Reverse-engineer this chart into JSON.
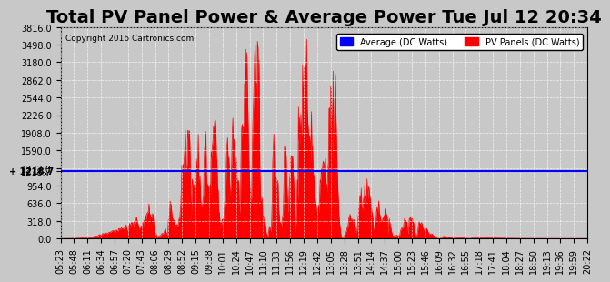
{
  "title": "Total PV Panel Power & Average Power Tue Jul 12 20:34",
  "copyright": "Copyright 2016 Cartronics.com",
  "legend_average": "Average (DC Watts)",
  "legend_pv": "PV Panels (DC Watts)",
  "average_value": 1218.7,
  "y_max": 3816.0,
  "y_ticks": [
    0.0,
    318.0,
    636.0,
    954.0,
    1272.0,
    1590.0,
    1908.0,
    2226.0,
    2544.0,
    2862.0,
    3180.0,
    3498.0,
    3816.0
  ],
  "x_labels": [
    "05:23",
    "05:48",
    "06:11",
    "06:34",
    "06:57",
    "07:20",
    "07:43",
    "08:06",
    "08:29",
    "08:52",
    "09:15",
    "09:38",
    "10:01",
    "10:24",
    "10:47",
    "11:10",
    "11:33",
    "11:56",
    "12:19",
    "12:42",
    "13:05",
    "13:28",
    "13:51",
    "14:14",
    "14:37",
    "15:00",
    "15:23",
    "15:46",
    "16:09",
    "16:32",
    "16:55",
    "17:18",
    "17:41",
    "18:04",
    "18:27",
    "18:50",
    "19:13",
    "19:36",
    "19:59",
    "20:22"
  ],
  "background_color": "#c8c8c8",
  "plot_bg_color": "#c8c8c8",
  "grid_color": "white",
  "fill_color": "red",
  "line_color": "red",
  "average_line_color": "blue",
  "title_fontsize": 14,
  "tick_fontsize": 7,
  "label_color": "#000000"
}
